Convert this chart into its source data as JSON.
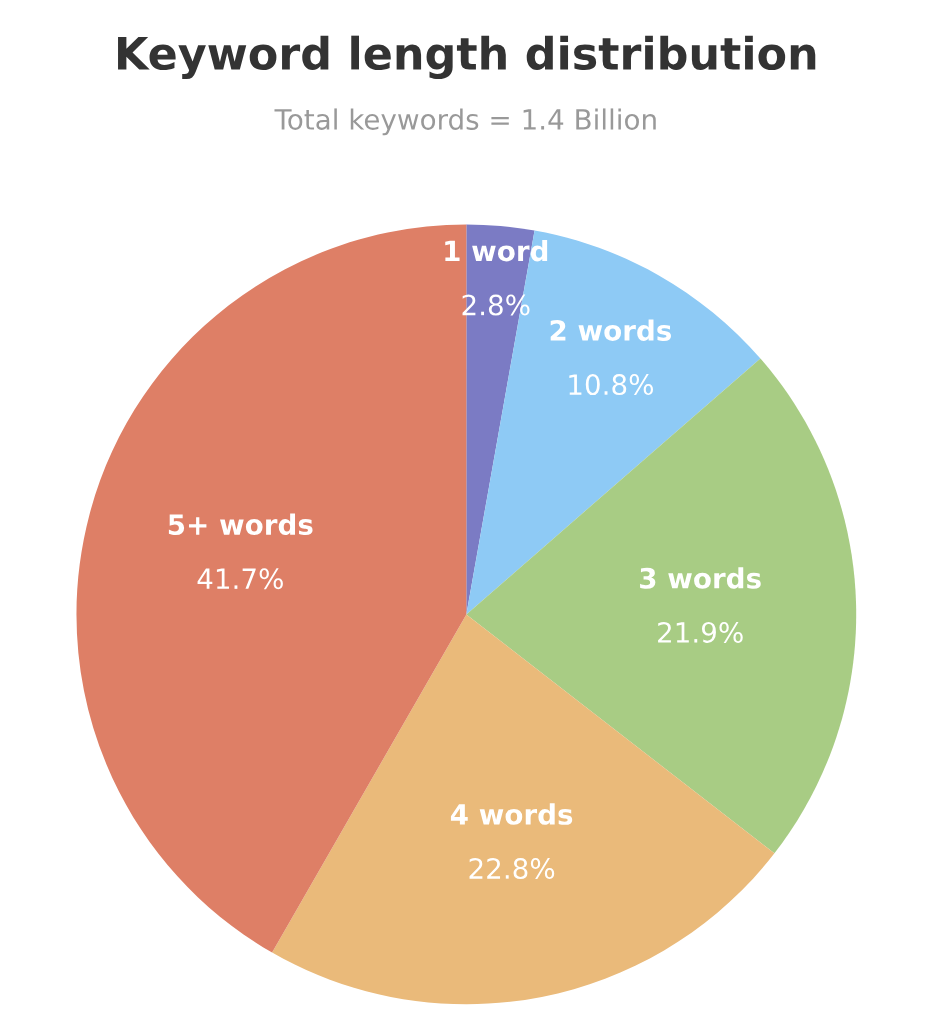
{
  "chart_data": {
    "type": "pie",
    "title": "Keyword length distribution",
    "subtitle": "Total keywords = 1.4 Billion",
    "categories": [
      "1 word",
      "2 words",
      "3 words",
      "4 words",
      "5+ words"
    ],
    "values": [
      2.8,
      10.8,
      21.9,
      22.8,
      41.7
    ],
    "value_labels": [
      "2.8%",
      "10.8%",
      "21.9%",
      "22.8%",
      "41.7%"
    ],
    "colors": [
      "#7b7bc4",
      "#8ecaf5",
      "#a8cc84",
      "#eaba7a",
      "#de7f66"
    ],
    "legend": false
  }
}
